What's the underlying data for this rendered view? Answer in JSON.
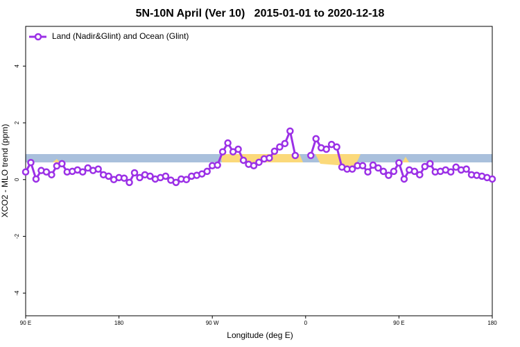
{
  "chart_data": {
    "type": "line",
    "title": "5N-10N April (Ver 10)   2015-01-01 to 2020-12-18",
    "x_label": "Longitude (deg E)",
    "y_label": "XCO2 - MLO trend (ppm)",
    "x": [
      90,
      95,
      100,
      105,
      110,
      115,
      120,
      125,
      130,
      135,
      140,
      145,
      150,
      155,
      160,
      165,
      170,
      175,
      180,
      185,
      190,
      195,
      200,
      205,
      210,
      215,
      220,
      225,
      230,
      235,
      240,
      245,
      250,
      255,
      260,
      265,
      270,
      275,
      280,
      285,
      290,
      295,
      300,
      305,
      310,
      315,
      320,
      325,
      330,
      335,
      340,
      345,
      350,
      355,
      360,
      365,
      370,
      375,
      380,
      385,
      390,
      395,
      400,
      405,
      410,
      415,
      420,
      425,
      430,
      435,
      440,
      445,
      450,
      455,
      460,
      465,
      470,
      475,
      480,
      485,
      490,
      495,
      500,
      505,
      510,
      515,
      520,
      525,
      530,
      535,
      540
    ],
    "series": [
      {
        "name": "Land (Nadir&Glint) and Ocean (Glint)",
        "color": "#9b30e6",
        "values": [
          0.27,
          0.6,
          0.02,
          0.32,
          0.27,
          0.17,
          0.48,
          0.56,
          0.27,
          0.29,
          0.34,
          0.27,
          0.41,
          0.32,
          0.37,
          0.17,
          0.12,
          0.0,
          0.07,
          0.05,
          -0.1,
          0.24,
          0.07,
          0.17,
          0.12,
          0.02,
          0.07,
          0.12,
          -0.02,
          -0.1,
          0.02,
          0.0,
          0.12,
          0.15,
          0.2,
          0.29,
          0.49,
          0.51,
          0.98,
          1.29,
          0.98,
          1.07,
          0.68,
          0.54,
          0.49,
          0.61,
          0.73,
          0.76,
          1.0,
          1.15,
          1.27,
          1.71,
          0.85,
          null,
          null,
          0.85,
          1.44,
          1.12,
          1.07,
          1.24,
          1.15,
          0.44,
          0.37,
          0.37,
          0.49,
          0.49,
          0.27,
          0.51,
          0.41,
          0.29,
          0.15,
          0.29,
          0.59,
          0.02,
          0.34,
          0.29,
          0.17,
          0.46,
          0.56,
          0.27,
          0.29,
          0.34,
          0.27,
          0.44,
          0.34,
          0.37,
          0.17,
          0.15,
          0.12,
          0.07,
          0.02
        ]
      }
    ],
    "xlim": [
      90,
      540
    ],
    "xticks": [
      {
        "value": 90,
        "label": "90 E"
      },
      180,
      {
        "value": 270,
        "label": "90 W"
      },
      {
        "value": 360,
        "label": "0"
      },
      {
        "value": 450,
        "label": "90 E"
      },
      {
        "value": 540,
        "label": "180"
      }
    ],
    "ylim": [
      -4.8,
      5.4
    ],
    "yticks": [
      -4,
      -2,
      0,
      2,
      4
    ],
    "legend": "top-left"
  }
}
